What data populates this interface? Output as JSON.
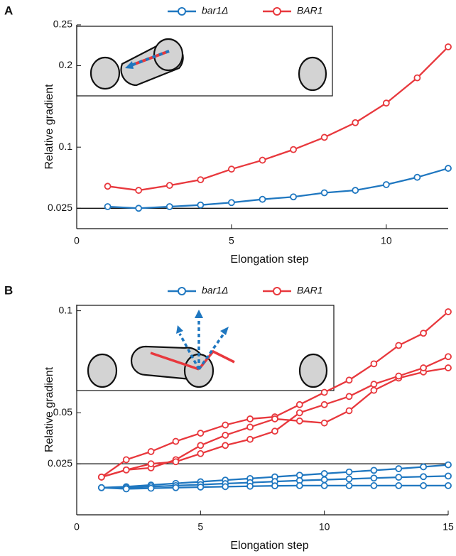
{
  "chart_data": [
    {
      "type": "line",
      "panel": "A",
      "ylabel": "Relative gradient",
      "xlabel": "Elongation step",
      "x": [
        1,
        2,
        3,
        4,
        5,
        6,
        7,
        8,
        9,
        10,
        11,
        12
      ],
      "xlim": [
        0,
        12
      ],
      "xticks": [
        0,
        5,
        10
      ],
      "ylim": [
        0,
        0.25
      ],
      "yticks": [
        0.025,
        0.1,
        0.2,
        0.25
      ],
      "reference_line": 0.025,
      "legend": [
        {
          "name": "bar1Δ",
          "color": "#1f77c0"
        },
        {
          "name": "BAR1",
          "color": "#e8383d"
        }
      ],
      "series": [
        {
          "color": "#e8383d",
          "values": [
            0.052,
            0.047,
            0.053,
            0.06,
            0.073,
            0.084,
            0.097,
            0.112,
            0.13,
            0.154,
            0.185,
            0.223
          ]
        },
        {
          "color": "#1f77c0",
          "values": [
            0.027,
            0.025,
            0.027,
            0.029,
            0.032,
            0.036,
            0.039,
            0.044,
            0.047,
            0.054,
            0.063,
            0.074
          ]
        }
      ]
    },
    {
      "type": "line",
      "panel": "B",
      "ylabel": "Relative gradient",
      "xlabel": "Elongation step",
      "x": [
        1,
        2,
        3,
        4,
        5,
        6,
        7,
        8,
        9,
        10,
        11,
        12,
        13,
        14,
        15
      ],
      "xlim": [
        0,
        15
      ],
      "xticks": [
        0,
        5,
        10,
        15
      ],
      "ylim": [
        0,
        0.103
      ],
      "yticks": [
        0.025,
        0.05,
        0.1
      ],
      "reference_line": 0.025,
      "legend": [
        {
          "name": "bar1Δ",
          "color": "#1f77c0"
        },
        {
          "name": "BAR1",
          "color": "#e8383d"
        }
      ],
      "series": [
        {
          "color": "#e8383d",
          "values": [
            0.0185,
            0.027,
            0.031,
            0.036,
            0.04,
            0.044,
            0.047,
            0.048,
            0.054,
            0.06,
            0.066,
            0.074,
            0.083,
            0.089,
            0.0995
          ]
        },
        {
          "color": "#e8383d",
          "values": [
            0.0185,
            0.022,
            0.023,
            0.027,
            0.034,
            0.039,
            0.043,
            0.047,
            0.046,
            0.045,
            0.051,
            0.061,
            0.067,
            0.07,
            0.072
          ]
        },
        {
          "color": "#e8383d",
          "values": [
            0.0185,
            0.022,
            0.025,
            0.026,
            0.03,
            0.034,
            0.037,
            0.041,
            0.05,
            0.054,
            0.058,
            0.064,
            0.068,
            0.072,
            0.0775
          ]
        },
        {
          "color": "#1f77c0",
          "values": [
            0.0133,
            0.0138,
            0.0146,
            0.0154,
            0.0162,
            0.017,
            0.0178,
            0.0186,
            0.0194,
            0.0202,
            0.021,
            0.0218,
            0.0226,
            0.0235,
            0.0245
          ]
        },
        {
          "color": "#1f77c0",
          "values": [
            0.0133,
            0.0133,
            0.0138,
            0.0143,
            0.0148,
            0.0153,
            0.0158,
            0.0163,
            0.0168,
            0.0172,
            0.0176,
            0.018,
            0.0184,
            0.0187,
            0.019
          ]
        },
        {
          "color": "#1f77c0",
          "values": [
            0.0133,
            0.0127,
            0.013,
            0.0133,
            0.0136,
            0.0138,
            0.014,
            0.0142,
            0.0143,
            0.0143,
            0.0143,
            0.0143,
            0.0143,
            0.0143,
            0.0143
          ]
        }
      ]
    }
  ]
}
